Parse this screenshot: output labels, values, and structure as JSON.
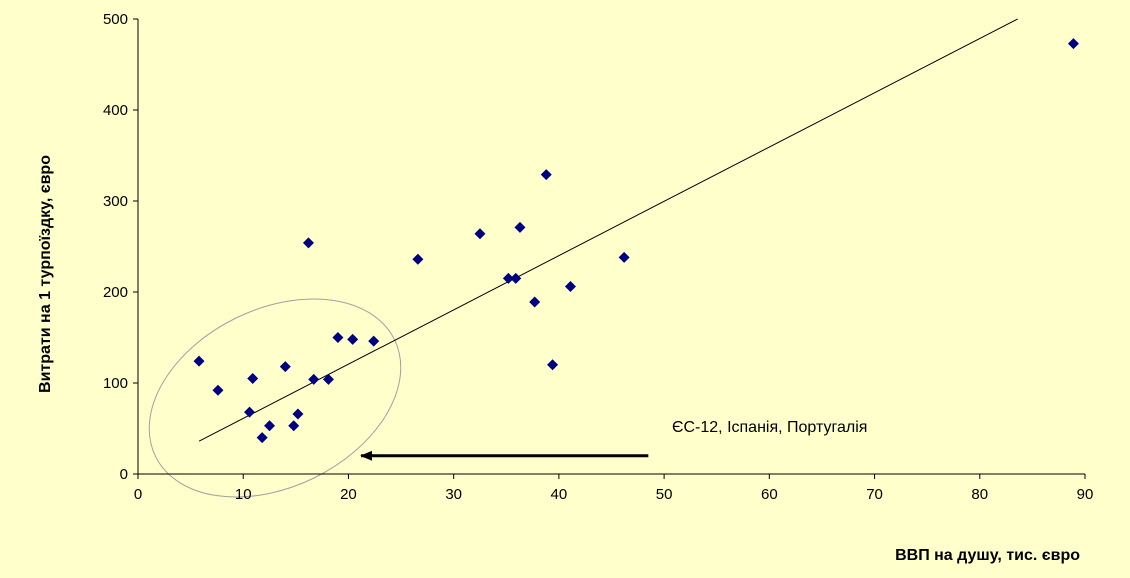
{
  "chart_data": {
    "type": "scatter",
    "title": "",
    "xlabel": "ВВП на душу, тис. євро",
    "ylabel": "Витрати на 1 турпоїздку, євро",
    "xlim": [
      0,
      90
    ],
    "ylim": [
      0,
      500
    ],
    "x_ticks": [
      "0",
      "10",
      "20",
      "30",
      "40",
      "50",
      "60",
      "70",
      "80",
      "90"
    ],
    "y_ticks": [
      "0",
      "100",
      "200",
      "300",
      "400",
      "500"
    ],
    "grid": false,
    "legend": "none",
    "colors": {
      "background": "#ffffcc",
      "marker": "#000080",
      "trendline": "#000000",
      "ellipse": "#a0a0a0"
    },
    "series": [
      {
        "points": [
          [
            5.8,
            124
          ],
          [
            7.6,
            92
          ],
          [
            10.6,
            68
          ],
          [
            10.9,
            105
          ],
          [
            11.8,
            40
          ],
          [
            12.5,
            53
          ],
          [
            14.0,
            118
          ],
          [
            14.8,
            53
          ],
          [
            15.2,
            66
          ],
          [
            16.2,
            254
          ],
          [
            16.7,
            104
          ],
          [
            18.1,
            104
          ],
          [
            19.0,
            150
          ],
          [
            20.4,
            148
          ],
          [
            22.4,
            146
          ],
          [
            26.6,
            236
          ],
          [
            32.5,
            264
          ],
          [
            35.2,
            215
          ],
          [
            35.9,
            215
          ],
          [
            36.3,
            271
          ],
          [
            37.7,
            189
          ],
          [
            38.8,
            329
          ],
          [
            39.4,
            120
          ],
          [
            41.1,
            206
          ],
          [
            46.2,
            238
          ],
          [
            88.9,
            473
          ]
        ]
      }
    ],
    "trendline": {
      "x": [
        5.8,
        83.6
      ],
      "y": [
        36,
        500
      ]
    },
    "annotations": [
      {
        "text": "ЄС-12, Іспанія, Португалія",
        "arrow_from": [
          48.5,
          20
        ],
        "arrow_to": [
          21.2,
          20
        ]
      }
    ]
  }
}
